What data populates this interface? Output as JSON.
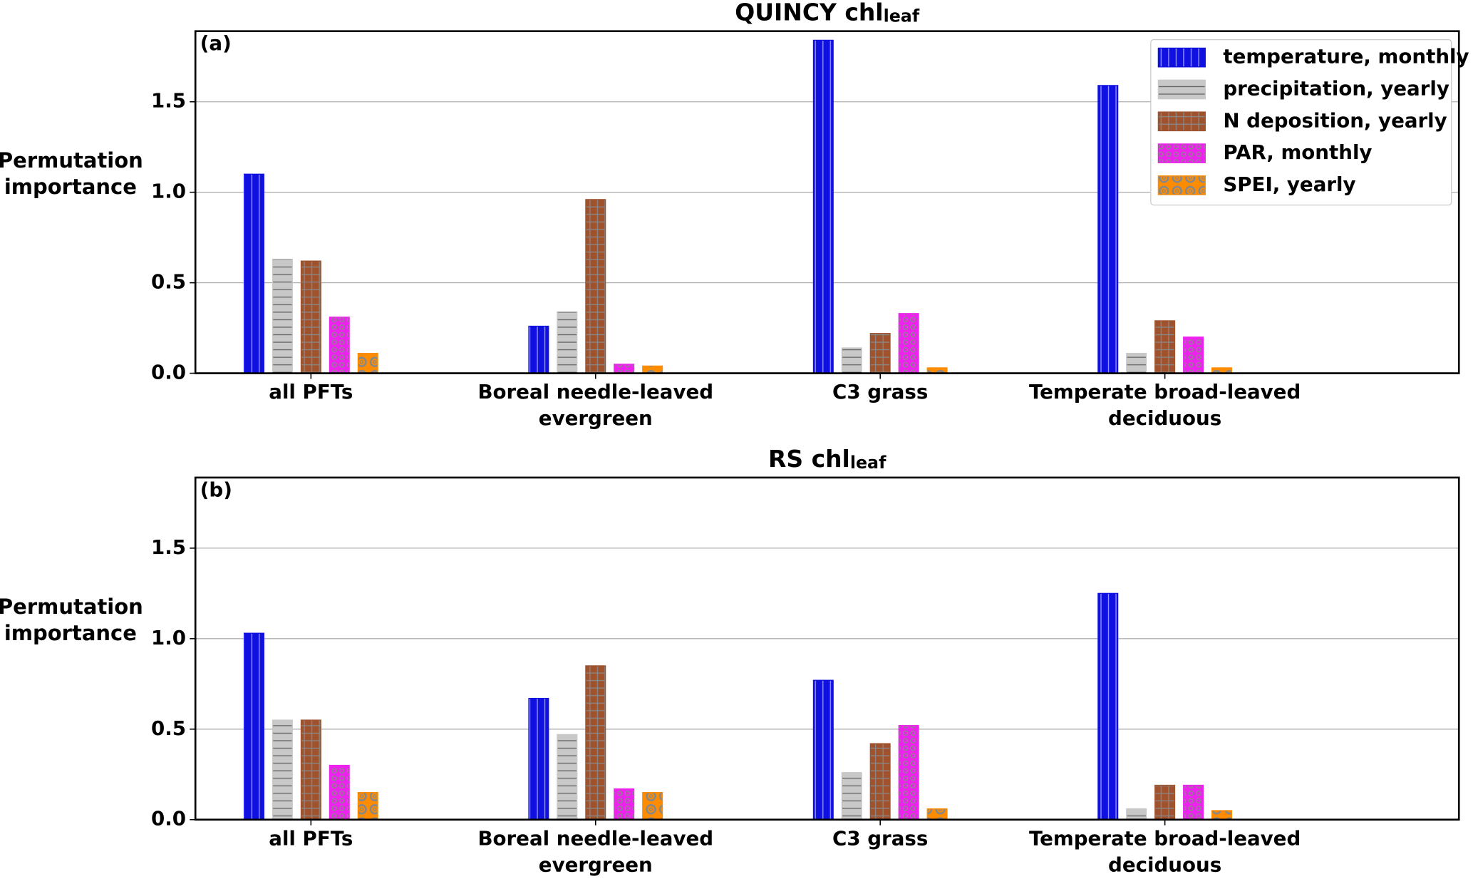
{
  "chart_data": [
    {
      "type": "bar",
      "title": "QUINCY chl",
      "title_subscript": "leaf",
      "panel_label": "(a)",
      "ylabel": [
        "Permutation",
        "importance"
      ],
      "categories": [
        [
          "all PFTs"
        ],
        [
          "Boreal needle-leaved",
          "evergreen"
        ],
        [
          "C3 grass"
        ],
        [
          "Temperate broad-leaved",
          "deciduous"
        ]
      ],
      "series": [
        {
          "name": "temperature, monthly",
          "color": "#1010e0",
          "hatch": "vertical",
          "values": [
            1.1,
            0.26,
            1.84,
            1.59
          ]
        },
        {
          "name": "precipitation, yearly",
          "color": "#c8c8c8",
          "hatch": "horizontal",
          "values": [
            0.63,
            0.34,
            0.14,
            0.11
          ]
        },
        {
          "name": "N deposition, yearly",
          "color": "#a0522d",
          "hatch": "grid",
          "values": [
            0.62,
            0.96,
            0.22,
            0.29
          ]
        },
        {
          "name": "PAR, monthly",
          "color": "#ee22ee",
          "hatch": "small-circles",
          "values": [
            0.31,
            0.05,
            0.33,
            0.2
          ]
        },
        {
          "name": "SPEI, yearly",
          "color": "#ff8c00",
          "hatch": "large-circles",
          "values": [
            0.11,
            0.04,
            0.03,
            0.03
          ]
        }
      ],
      "ylim": [
        0,
        1.89
      ],
      "yticks": [
        {
          "value": 0,
          "label": "0.0"
        },
        0.5,
        {
          "value": 1,
          "label": "1.0"
        },
        1.5
      ],
      "grid": true,
      "legend": "upper right"
    },
    {
      "type": "bar",
      "title": "RS chl",
      "title_subscript": "leaf",
      "panel_label": "(b)",
      "ylabel": [
        "Permutation",
        "importance"
      ],
      "categories": [
        [
          "all PFTs"
        ],
        [
          "Boreal needle-leaved",
          "evergreen"
        ],
        [
          "C3 grass"
        ],
        [
          "Temperate broad-leaved",
          "deciduous"
        ]
      ],
      "series": [
        {
          "name": "temperature, monthly",
          "color": "#1010e0",
          "hatch": "vertical",
          "values": [
            1.03,
            0.67,
            0.77,
            1.25
          ]
        },
        {
          "name": "precipitation, yearly",
          "color": "#c8c8c8",
          "hatch": "horizontal",
          "values": [
            0.55,
            0.47,
            0.26,
            0.06
          ]
        },
        {
          "name": "N deposition, yearly",
          "color": "#a0522d",
          "hatch": "grid",
          "values": [
            0.55,
            0.85,
            0.42,
            0.19
          ]
        },
        {
          "name": "PAR, monthly",
          "color": "#ee22ee",
          "hatch": "small-circles",
          "values": [
            0.3,
            0.17,
            0.52,
            0.19
          ]
        },
        {
          "name": "SPEI, yearly",
          "color": "#ff8c00",
          "hatch": "large-circles",
          "values": [
            0.15,
            0.15,
            0.06,
            0.05
          ]
        }
      ],
      "ylim": [
        0,
        1.89
      ],
      "yticks": [
        {
          "value": 0,
          "label": "0.0"
        },
        0.5,
        {
          "value": 1,
          "label": "1.0"
        },
        1.5
      ],
      "grid": true
    }
  ]
}
